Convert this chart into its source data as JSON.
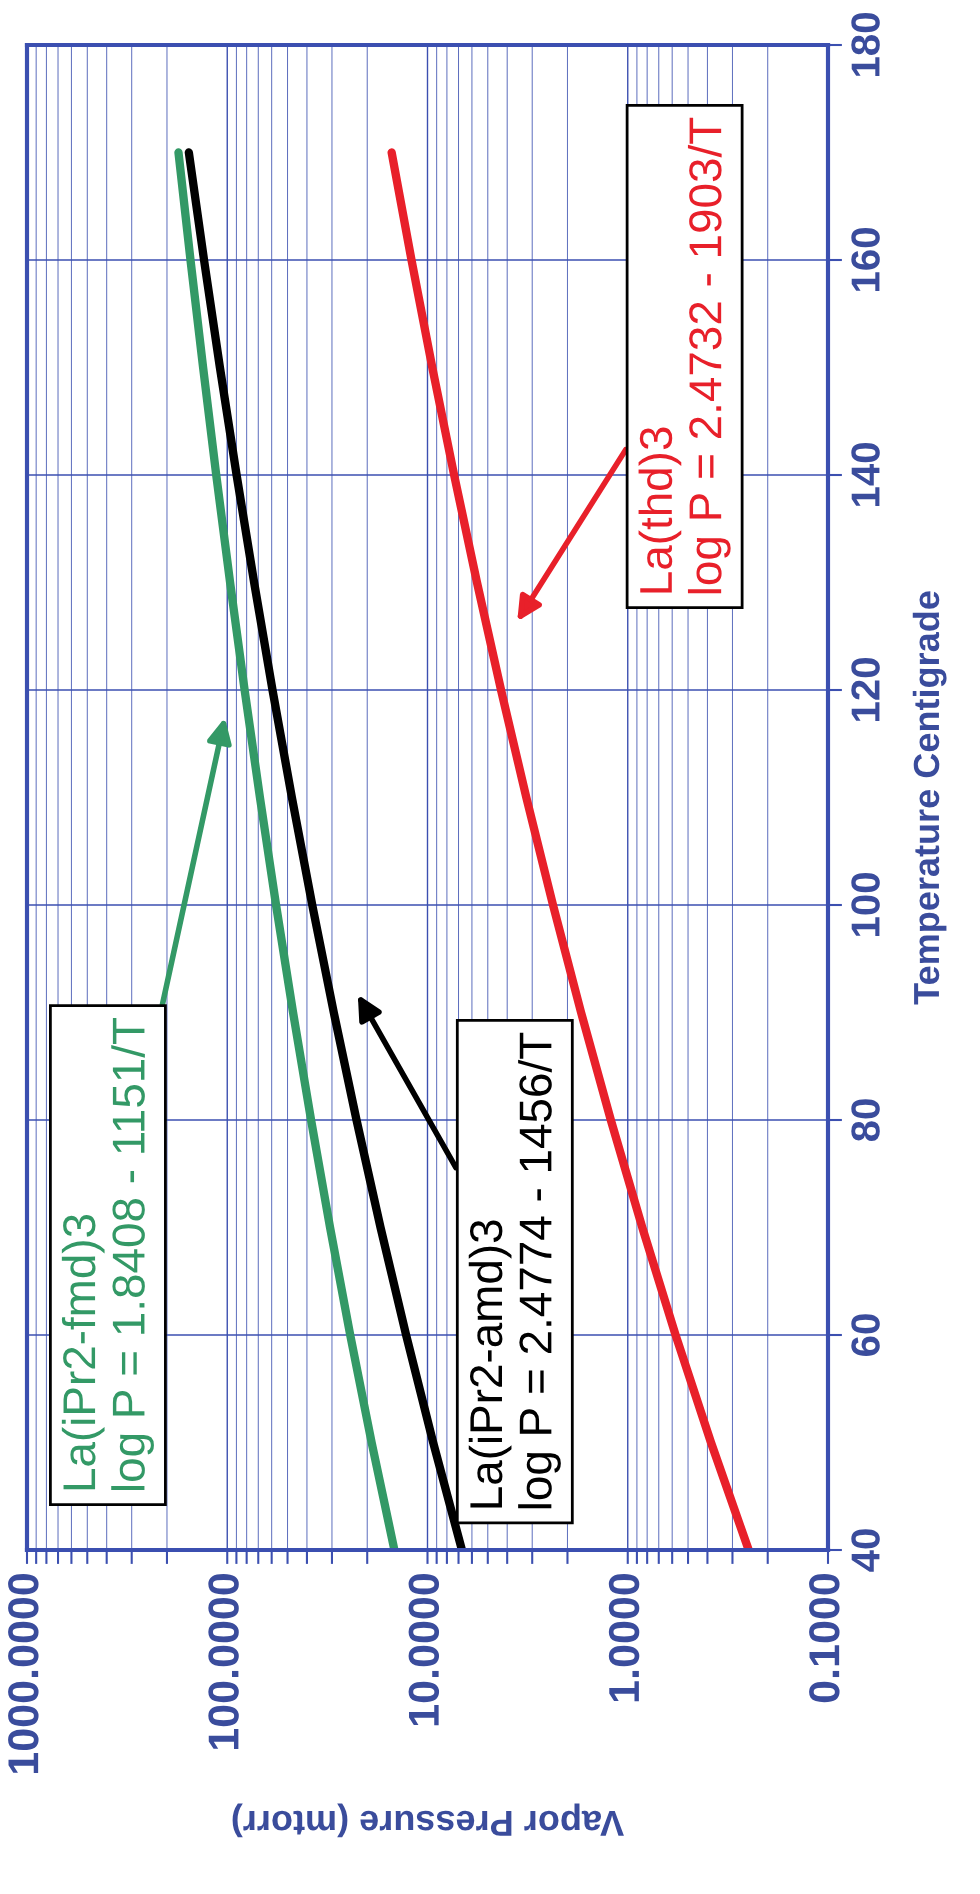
{
  "chart_data": {
    "type": "line",
    "xlabel": "Vapor Pressure (mtorr)",
    "ylabel": "Temperature Centigrade",
    "series": [
      {
        "color": "#339966",
        "x": [
          14.63,
          19.01,
          24.32,
          30.66,
          38.14,
          46.92,
          57.06,
          68.67,
          81.9,
          96.78,
          113.5,
          132.0,
          152.6,
          175.2
        ],
        "values": [
          40,
          50,
          60,
          70,
          80,
          90,
          100,
          110,
          120,
          130,
          140,
          150,
          160,
          170
        ]
      },
      {
        "color": "#000000",
        "x": [
          6.73,
          9.37,
          12.79,
          17.16,
          22.62,
          29.38,
          37.63,
          47.56,
          59.43,
          73.41,
          89.81,
          108.8,
          130.6,
          155.5
        ],
        "values": [
          40,
          50,
          60,
          70,
          80,
          90,
          100,
          110,
          120,
          130,
          140,
          150,
          160,
          170
        ]
      },
      {
        "color": "#e8202a",
        "x": [
          0.249,
          0.384,
          0.577,
          0.846,
          1.215,
          1.71,
          2.362,
          3.21,
          4.293,
          5.66,
          7.364,
          9.463,
          12.02,
          15.1
        ],
        "values": [
          40,
          50,
          60,
          70,
          80,
          90,
          100,
          110,
          120,
          130,
          140,
          150,
          160,
          170
        ]
      }
    ],
    "xlim": [
      1000,
      0.1
    ],
    "xticks": [
      {
        "value": 1000,
        "label": "1000.0000"
      },
      {
        "value": 900,
        "label": null
      },
      {
        "value": 800,
        "label": null
      },
      {
        "value": 700,
        "label": null
      },
      {
        "value": 600,
        "label": null
      },
      {
        "value": 500,
        "label": null
      },
      {
        "value": 400,
        "label": null
      },
      {
        "value": 300,
        "label": null
      },
      {
        "value": 200,
        "label": null
      },
      {
        "value": 100,
        "label": "100.0000"
      },
      {
        "value": 90,
        "label": null
      },
      {
        "value": 80,
        "label": null
      },
      {
        "value": 70,
        "label": null
      },
      {
        "value": 60,
        "label": null
      },
      {
        "value": 50,
        "label": null
      },
      {
        "value": 40,
        "label": null
      },
      {
        "value": 30,
        "label": null
      },
      {
        "value": 20,
        "label": null
      },
      {
        "value": 10,
        "label": "10.0000"
      },
      {
        "value": 9,
        "label": null
      },
      {
        "value": 8,
        "label": null
      },
      {
        "value": 7,
        "label": null
      },
      {
        "value": 6,
        "label": null
      },
      {
        "value": 5,
        "label": null
      },
      {
        "value": 4,
        "label": null
      },
      {
        "value": 3,
        "label": null
      },
      {
        "value": 2,
        "label": null
      },
      {
        "value": 1,
        "label": "1.0000"
      },
      {
        "value": 0.9,
        "label": null
      },
      {
        "value": 0.8,
        "label": null
      },
      {
        "value": 0.7,
        "label": null
      },
      {
        "value": 0.6,
        "label": null
      },
      {
        "value": 0.5,
        "label": null
      },
      {
        "value": 0.4,
        "label": null
      },
      {
        "value": 0.3,
        "label": null
      },
      {
        "value": 0.2,
        "label": null
      },
      {
        "value": 0.1,
        "label": "0.1000"
      }
    ],
    "ylim": [
      40,
      180
    ],
    "yticks": [
      40,
      60,
      80,
      100,
      120,
      140,
      160,
      180
    ],
    "log": "x",
    "grid": true,
    "marker": "none",
    "line_style": "solid",
    "annotations": [
      "La(iPr2-fmd)3\nlog P = 1.8408 - 1151/T",
      "La(iPr2-amd)3\nlog P = 2.4774 - 1456/T",
      "La(thd)3\nlog P = 2.4732 - 1903/T"
    ]
  }
}
